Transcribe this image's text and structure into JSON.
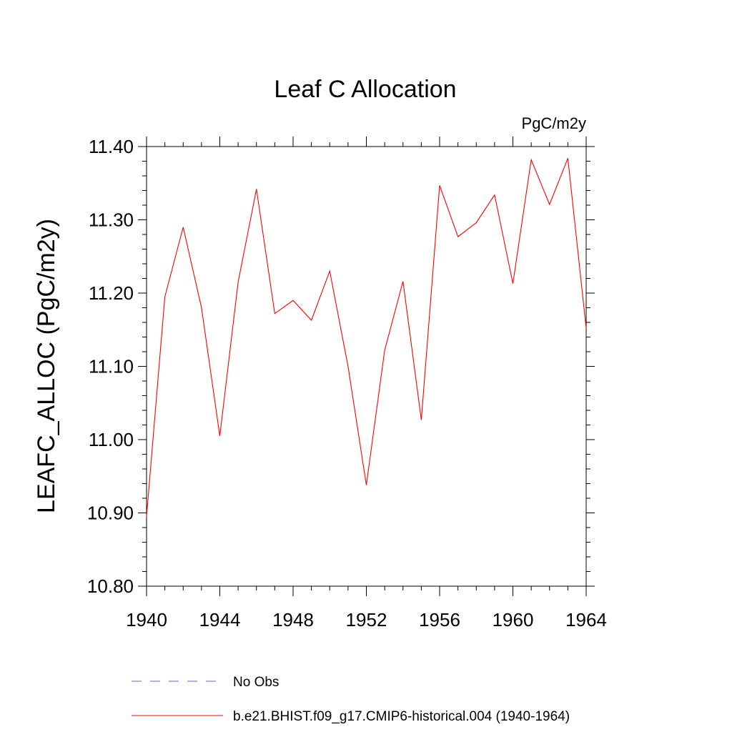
{
  "chart_data": {
    "type": "line",
    "title": "Leaf C Allocation",
    "units_label": "PgC/m2y",
    "ylabel": "LEAFC_ALLOC  (PgC/m2y)",
    "xlabel": "",
    "xlim": [
      1940,
      1964
    ],
    "ylim": [
      10.8,
      11.4
    ],
    "x_ticks": [
      "1940",
      "1944",
      "1948",
      "1952",
      "1956",
      "1960",
      "1964"
    ],
    "y_ticks": [
      "10.80",
      "10.90",
      "11.00",
      "11.10",
      "11.20",
      "11.30",
      "11.40"
    ],
    "grid": false,
    "legend_position": "bottom",
    "legend": [
      {
        "label": "No Obs",
        "color": "#6a5fc9",
        "dash": "dashed"
      },
      {
        "label": "b.e21.BHIST.f09_g17.CMIP6-historical.004 (1940-1964)",
        "color": "#ff0000",
        "dash": "solid"
      }
    ],
    "series": [
      {
        "name": "b.e21.BHIST.f09_g17.CMIP6-historical.004 (1940-1964)",
        "color": "#ff0000",
        "x": [
          1940,
          1941,
          1942,
          1943,
          1944,
          1945,
          1946,
          1947,
          1948,
          1949,
          1950,
          1951,
          1952,
          1953,
          1954,
          1955,
          1956,
          1957,
          1958,
          1959,
          1960,
          1961,
          1962,
          1963,
          1964
        ],
        "y": [
          10.895,
          11.195,
          11.29,
          11.18,
          11.005,
          11.215,
          11.342,
          11.172,
          11.19,
          11.163,
          11.23,
          11.1,
          10.938,
          11.122,
          11.216,
          11.027,
          11.347,
          11.277,
          11.296,
          11.334,
          11.213,
          11.382,
          11.321,
          11.384,
          11.152
        ]
      }
    ]
  }
}
